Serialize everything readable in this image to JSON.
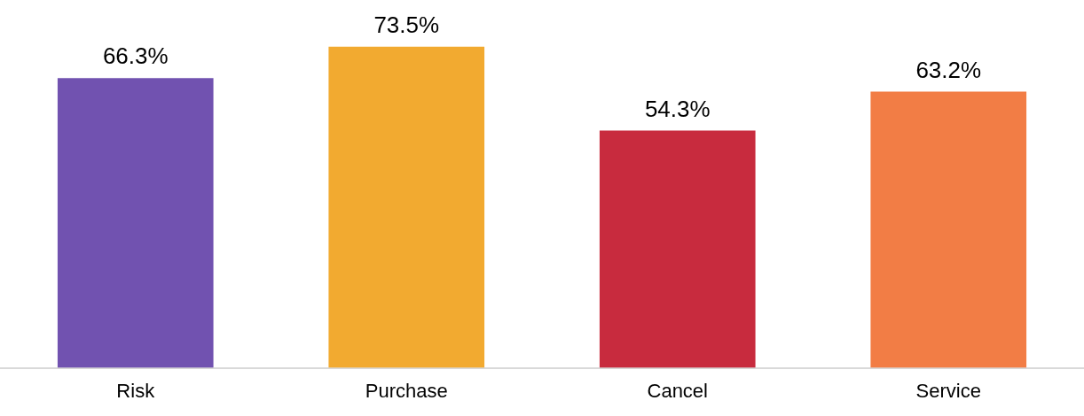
{
  "chart_data": {
    "type": "bar",
    "categories": [
      "Risk",
      "Purchase",
      "Cancel",
      "Service"
    ],
    "values": [
      66.3,
      73.5,
      54.3,
      63.2
    ],
    "colors": [
      "#7152b0",
      "#f2aa30",
      "#c82b3e",
      "#f27d45"
    ],
    "value_labels": [
      "66.3%",
      "73.5%",
      "54.3%",
      "63.2%"
    ],
    "grid": false,
    "legend": false
  }
}
